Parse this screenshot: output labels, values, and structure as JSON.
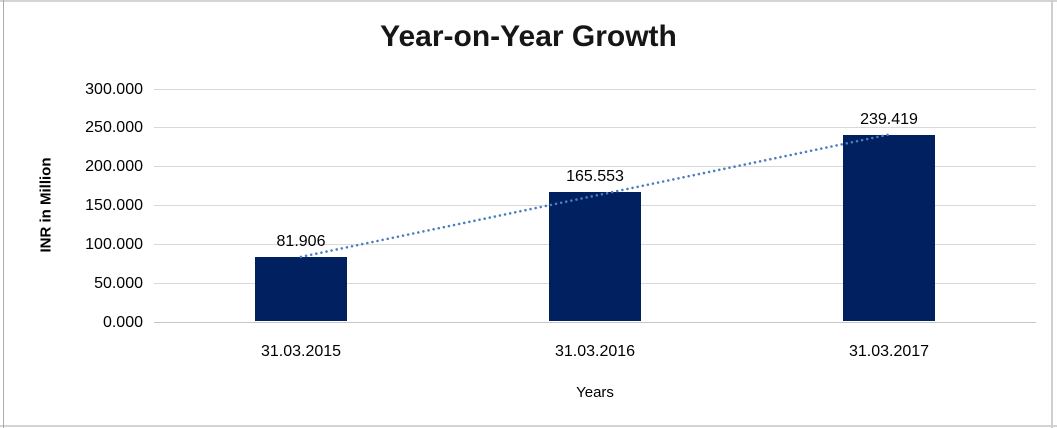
{
  "chart_data": {
    "type": "bar",
    "title": "Year-on-Year Growth",
    "xlabel": "Years",
    "ylabel": "INR in Million",
    "categories": [
      "31.03.2015",
      "31.03.2016",
      "31.03.2017"
    ],
    "values": [
      81.906,
      165.553,
      239.419
    ],
    "data_labels": [
      "81.906",
      "165.553",
      "239.419"
    ],
    "ytick_labels": [
      "300.000",
      "250.000",
      "200.000",
      "150.000",
      "100.000",
      "50.000",
      "0.000"
    ],
    "ytick_values": [
      300,
      250,
      200,
      150,
      100,
      50,
      0
    ],
    "ylim": [
      0,
      300
    ],
    "grid": true,
    "legend": "none",
    "trendline": {
      "type": "linear",
      "style": "dotted",
      "from_category": "31.03.2015",
      "to_category": "31.03.2017",
      "color": "#4a7ebf"
    },
    "colors": {
      "bar": "#002060",
      "gridline": "#d9d9d9",
      "axisline": "#c6c6c6",
      "trendline": "#4a7ebf",
      "text": "#000000"
    }
  }
}
